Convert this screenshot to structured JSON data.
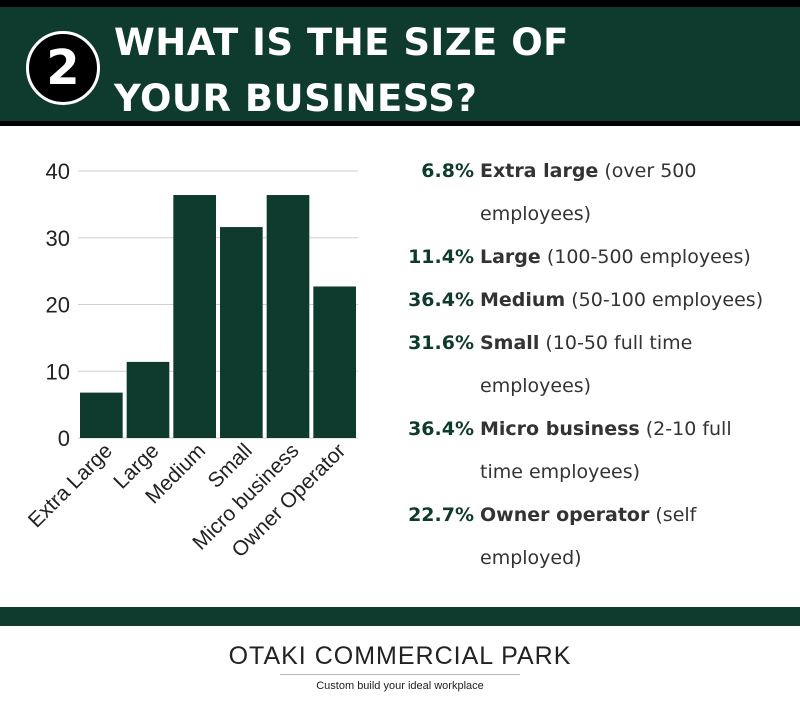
{
  "header": {
    "number": "2",
    "title_line1": "WHAT IS THE SIZE OF",
    "title_line2": "YOUR BUSINESS?"
  },
  "colors": {
    "accent": "#0e3b2e",
    "header_bg": "#0e3b2e"
  },
  "chart_data": {
    "type": "bar",
    "categories": [
      "Extra Large",
      "Large",
      "Medium",
      "Small",
      "Micro business",
      "Owner Operator"
    ],
    "values": [
      6.8,
      11.4,
      36.4,
      31.6,
      36.4,
      22.7
    ],
    "yticks": [
      0,
      10,
      20,
      30,
      40
    ],
    "ylim": [
      0,
      40
    ],
    "grid": true,
    "bar_color": "#0e3b2e"
  },
  "legend_items": [
    {
      "pct": "6.8%",
      "name": "Extra large",
      "rest": " (over 500",
      "cont": "employees)"
    },
    {
      "pct": "11.4%",
      "name": "Large",
      "rest": " (100-500 employees)",
      "cont": ""
    },
    {
      "pct": "36.4%",
      "name": "Medium",
      "rest": " (50-100 employees)",
      "cont": ""
    },
    {
      "pct": "31.6%",
      "name": "Small",
      "rest": " (10-50 full time",
      "cont": "employees)"
    },
    {
      "pct": "36.4%",
      "name": "Micro business",
      "rest": " (2-10 full",
      "cont": "time employees)"
    },
    {
      "pct": "22.7%",
      "name": "Owner operator",
      "rest": " (self",
      "cont": "employed)"
    }
  ],
  "footer": {
    "brand": "OTAKI COMMERCIAL PARK",
    "tagline": "Custom build your ideal workplace"
  }
}
